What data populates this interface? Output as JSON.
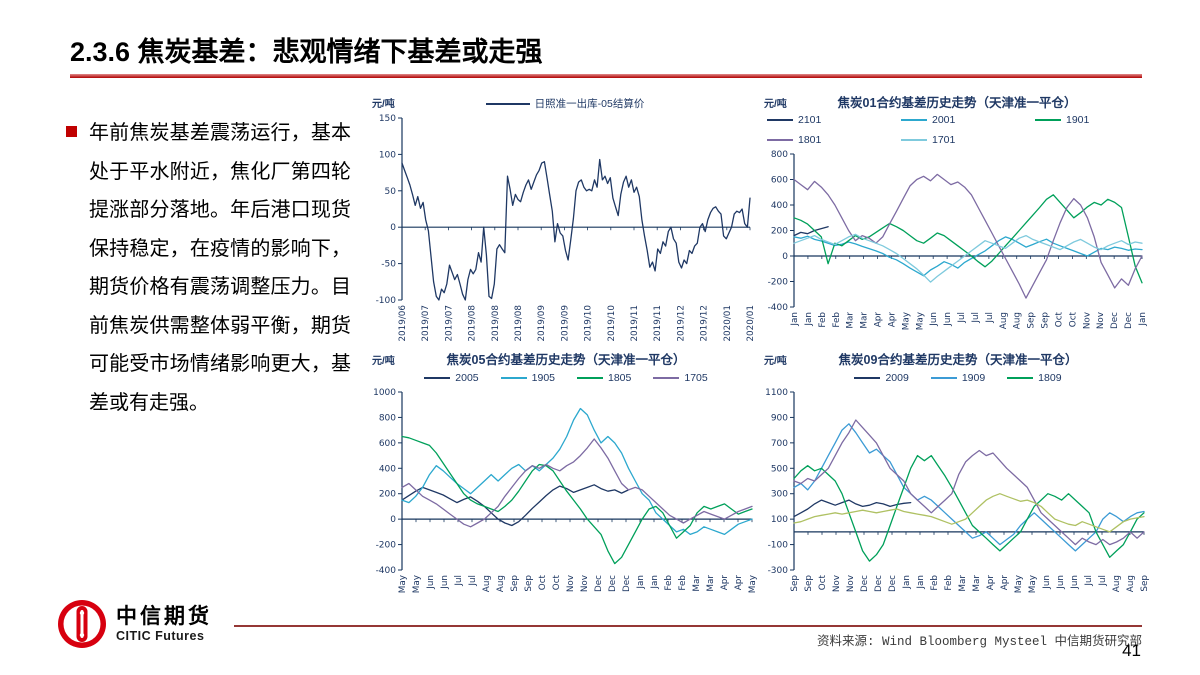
{
  "page": {
    "title": "2.3.6 焦炭基差：悲观情绪下基差或走强",
    "page_number": "41",
    "source": "资料来源: Wind Bloomberg Mysteel 中信期货研究部",
    "logo_cn": "中信期货",
    "logo_en": "CITIC Futures",
    "accent_red": "#C00000",
    "footer_rule_red": "#953735"
  },
  "commentary": {
    "text": "年前焦炭基差震荡运行，基本处于平水附近，焦化厂第四轮提涨部分落地。年后港口现货保持稳定，在疫情的影响下，期货价格有震荡调整压力。目前焦炭供需整体弱平衡，期货可能受市场情绪影响更大，基差或有走强。"
  },
  "chart_data": [
    {
      "type": "line",
      "name": "rizhao-spot-minus-05-settlement",
      "title": "",
      "unit": "元/吨",
      "ylim": [
        -100,
        150
      ],
      "yticks": [
        150,
        100,
        50,
        0,
        -50,
        -100
      ],
      "mb": 46,
      "x_labels": [
        "2019/06",
        "2019/07",
        "2019/07",
        "2019/08",
        "2019/08",
        "2019/08",
        "2019/09",
        "2019/09",
        "2019/10",
        "2019/10",
        "2019/11",
        "2019/11",
        "2019/12",
        "2019/12",
        "2020/01",
        "2020/01"
      ],
      "legend_position": "top-center",
      "grid": false,
      "series": [
        {
          "name": "日照准一出库-05结算价",
          "color": "#1F3864",
          "values": [
            88,
            78,
            68,
            58,
            45,
            30,
            42,
            26,
            34,
            10,
            -5,
            -40,
            -75,
            -95,
            -100,
            -85,
            -90,
            -78,
            -52,
            -62,
            -72,
            -65,
            -78,
            -92,
            -100,
            -72,
            -58,
            -64,
            -58,
            -35,
            -48,
            0,
            -38,
            -95,
            -98,
            -78,
            -30,
            -24,
            -30,
            -35,
            70,
            52,
            30,
            45,
            38,
            35,
            48,
            58,
            65,
            52,
            62,
            72,
            78,
            88,
            90,
            68,
            45,
            22,
            -20,
            5,
            -8,
            -12,
            -32,
            -45,
            -18,
            12,
            50,
            62,
            65,
            55,
            50,
            52,
            50,
            65,
            55,
            93,
            65,
            70,
            60,
            68,
            40,
            28,
            16,
            45,
            62,
            70,
            55,
            65,
            48,
            55,
            42,
            10,
            -12,
            -32,
            -55,
            -48,
            -60,
            -30,
            -36,
            -20,
            -26,
            -6,
            0,
            -16,
            -22,
            -48,
            -56,
            -45,
            -50,
            -32,
            -36,
            -26,
            -22,
            0,
            5,
            -6,
            10,
            20,
            26,
            28,
            22,
            18,
            -12,
            -16,
            -8,
            0,
            18,
            22,
            20,
            25,
            5,
            0,
            40
          ]
        }
      ]
    },
    {
      "type": "line",
      "name": "coke-01-contract-basis-history",
      "title": "焦炭01合约基差历史走势（天津准一平仓）",
      "unit": "元/吨",
      "ylim": [
        -400,
        800
      ],
      "yticks": [
        800,
        600,
        400,
        200,
        0,
        -200,
        -400
      ],
      "x_labels": [
        "Jan",
        "Jan",
        "Feb",
        "Feb",
        "Mar",
        "Mar",
        "Apr",
        "Apr",
        "May",
        "May",
        "Jun",
        "Jun",
        "Jul",
        "Jul",
        "Jul",
        "Aug",
        "Aug",
        "Sep",
        "Sep",
        "Oct",
        "Oct",
        "Nov",
        "Nov",
        "Dec",
        "Dec",
        "Jan"
      ],
      "legend_position": "top-grid",
      "grid": false,
      "series": [
        {
          "name": "2101",
          "color": "#1F3864",
          "start": 0,
          "values": [
            160,
            185,
            175,
            200,
            215,
            230
          ]
        },
        {
          "name": "2001",
          "color": "#2CA8CE",
          "values": [
            150,
            140,
            155,
            130,
            118,
            100,
            82,
            92,
            110,
            95,
            75,
            58,
            40,
            20,
            -10,
            -30,
            -60,
            -95,
            -125,
            -155,
            -110,
            -80,
            -45,
            -65,
            -95,
            -50,
            -20,
            10,
            40,
            80,
            120,
            150,
            130,
            100,
            70,
            90,
            112,
            132,
            100,
            80,
            60,
            40,
            20,
            0,
            30,
            60,
            50,
            70,
            60,
            45,
            55,
            50
          ]
        },
        {
          "name": "1901",
          "color": "#00A05A",
          "values": [
            300,
            280,
            250,
            200,
            150,
            -60,
            100,
            80,
            120,
            160,
            130,
            150,
            185,
            220,
            255,
            230,
            200,
            160,
            120,
            100,
            140,
            180,
            160,
            120,
            80,
            40,
            0,
            -45,
            -85,
            -40,
            20,
            80,
            140,
            200,
            260,
            320,
            380,
            445,
            480,
            420,
            360,
            300,
            340,
            385,
            420,
            400,
            445,
            420,
            380,
            150,
            -80,
            -210
          ]
        },
        {
          "name": "1801",
          "color": "#7D6BA3",
          "values": [
            600,
            560,
            520,
            585,
            540,
            480,
            400,
            300,
            200,
            120,
            160,
            140,
            100,
            150,
            250,
            350,
            450,
            550,
            600,
            625,
            590,
            640,
            600,
            560,
            580,
            540,
            480,
            380,
            280,
            180,
            80,
            -20,
            -120,
            -220,
            -330,
            -230,
            -130,
            -30,
            120,
            260,
            380,
            450,
            400,
            300,
            150,
            -50,
            -150,
            -250,
            -180,
            -230,
            -100,
            0
          ]
        },
        {
          "name": "1701",
          "color": "#7FCADD",
          "values": [
            100,
            120,
            140,
            160,
            130,
            110,
            90,
            120,
            150,
            170,
            140,
            120,
            100,
            80,
            50,
            20,
            -20,
            -60,
            -100,
            -150,
            -205,
            -160,
            -120,
            -80,
            -40,
            0,
            40,
            80,
            120,
            100,
            80,
            60,
            100,
            140,
            160,
            130,
            110,
            90,
            70,
            50,
            80,
            110,
            130,
            100,
            70,
            50,
            80,
            100,
            120,
            90,
            110,
            100
          ]
        }
      ]
    },
    {
      "type": "line",
      "name": "coke-05-contract-basis-history",
      "title": "焦炭05合约基差历史走势（天津准一平仓）",
      "unit": "元/吨",
      "ylim": [
        -400,
        1000
      ],
      "yticks": [
        1000,
        800,
        600,
        400,
        200,
        0,
        -200,
        -400
      ],
      "x_labels": [
        "May",
        "May",
        "Jun",
        "Jun",
        "Jul",
        "Jul",
        "Aug",
        "Aug",
        "Sep",
        "Sep",
        "Oct",
        "Oct",
        "Nov",
        "Nov",
        "Dec",
        "Dec",
        "Dec",
        "Jan",
        "Jan",
        "Feb",
        "Feb",
        "Mar",
        "Mar",
        "Apr",
        "Apr",
        "May"
      ],
      "legend_position": "top-row",
      "grid": false,
      "series": [
        {
          "name": "2005",
          "color": "#1F3864",
          "start": 0,
          "values": [
            150,
            185,
            220,
            250,
            230,
            210,
            190,
            160,
            130,
            155,
            175,
            140,
            100,
            50,
            0,
            -30,
            -50,
            -20,
            30,
            85,
            135,
            185,
            230,
            260,
            240,
            210,
            230,
            250,
            270,
            240,
            220,
            230,
            205,
            230
          ]
        },
        {
          "name": "1905",
          "color": "#2CA8CE",
          "values": [
            150,
            130,
            180,
            250,
            350,
            420,
            380,
            330,
            280,
            240,
            200,
            250,
            300,
            350,
            300,
            350,
            400,
            430,
            380,
            420,
            380,
            430,
            480,
            550,
            650,
            780,
            870,
            820,
            700,
            600,
            650,
            600,
            520,
            400,
            300,
            200,
            150,
            50,
            0,
            -50,
            -100,
            -80,
            -120,
            -100,
            -60,
            -80,
            -100,
            -120,
            -80,
            -40,
            -20,
            0
          ]
        },
        {
          "name": "1805",
          "color": "#00A05A",
          "values": [
            650,
            640,
            620,
            600,
            580,
            520,
            440,
            360,
            280,
            200,
            150,
            120,
            100,
            80,
            60,
            100,
            150,
            220,
            300,
            380,
            430,
            420,
            380,
            300,
            220,
            150,
            80,
            0,
            -60,
            -120,
            -250,
            -350,
            -300,
            -200,
            -100,
            0,
            80,
            100,
            50,
            -50,
            -150,
            -100,
            -50,
            50,
            100,
            80,
            100,
            120,
            80,
            40,
            60,
            80
          ]
        },
        {
          "name": "1705",
          "color": "#7D6BA3",
          "values": [
            250,
            280,
            230,
            180,
            150,
            120,
            80,
            40,
            0,
            -40,
            -60,
            -30,
            0,
            50,
            100,
            180,
            250,
            320,
            380,
            420,
            400,
            430,
            400,
            380,
            420,
            450,
            500,
            560,
            630,
            560,
            480,
            380,
            280,
            230,
            250,
            230,
            180,
            130,
            80,
            30,
            0,
            -30,
            0,
            30,
            60,
            40,
            20,
            0,
            30,
            60,
            80,
            100
          ]
        }
      ]
    },
    {
      "type": "line",
      "name": "coke-09-contract-basis-history",
      "title": "焦炭09合约基差历史走势（天津准一平仓）",
      "unit": "元/吨",
      "ylim": [
        -300,
        1100
      ],
      "yticks": [
        1100,
        900,
        700,
        500,
        300,
        100,
        -100,
        -300
      ],
      "x_labels": [
        "Sep",
        "Sep",
        "Oct",
        "Nov",
        "Nov",
        "Dec",
        "Dec",
        "Dec",
        "Jan",
        "Jan",
        "Feb",
        "Feb",
        "Mar",
        "Mar",
        "Apr",
        "Apr",
        "May",
        "May",
        "Jun",
        "Jun",
        "Jun",
        "Jul",
        "Jul",
        "Aug",
        "Aug",
        "Sep"
      ],
      "legend_position": "top-row",
      "grid": false,
      "series": [
        {
          "name": "2009",
          "color": "#1F3864",
          "start": 0,
          "values": [
            120,
            150,
            180,
            220,
            250,
            230,
            210,
            230,
            250,
            220,
            200,
            210,
            230,
            220,
            200,
            215,
            225,
            230
          ]
        },
        {
          "name": "1909",
          "color": "#3C9BD5",
          "values": [
            350,
            380,
            330,
            400,
            500,
            600,
            700,
            800,
            850,
            780,
            700,
            620,
            650,
            600,
            550,
            450,
            350,
            300,
            250,
            280,
            250,
            200,
            150,
            100,
            50,
            0,
            -50,
            -30,
            0,
            -50,
            -100,
            -60,
            -20,
            50,
            100,
            150,
            100,
            50,
            0,
            -50,
            -100,
            -150,
            -100,
            -50,
            0,
            100,
            150,
            120,
            80,
            120,
            150,
            160
          ]
        },
        {
          "name": "1809",
          "color": "#00A05A",
          "values": [
            420,
            480,
            520,
            480,
            500,
            450,
            400,
            300,
            150,
            0,
            -150,
            -230,
            -180,
            -100,
            50,
            200,
            350,
            500,
            600,
            560,
            600,
            520,
            440,
            350,
            250,
            150,
            50,
            0,
            -50,
            -100,
            -150,
            -100,
            -50,
            0,
            100,
            200,
            250,
            300,
            280,
            250,
            300,
            250,
            200,
            150,
            0,
            -100,
            -200,
            -150,
            -100,
            0,
            100,
            150
          ]
        },
        {
          "name": "",
          "legend": false,
          "color": "#7D6BA3",
          "values": [
            400,
            380,
            420,
            400,
            450,
            500,
            600,
            700,
            780,
            880,
            820,
            760,
            700,
            600,
            500,
            450,
            400,
            300,
            250,
            200,
            150,
            200,
            250,
            300,
            450,
            550,
            600,
            640,
            600,
            620,
            560,
            500,
            450,
            400,
            350,
            250,
            150,
            100,
            50,
            0,
            -50,
            -100,
            -50,
            -80,
            -100,
            -60,
            -100,
            -80,
            -50,
            0,
            -50,
            0
          ]
        },
        {
          "name": "",
          "legend": false,
          "color": "#AFC163",
          "values": [
            70,
            80,
            100,
            120,
            130,
            140,
            150,
            140,
            150,
            160,
            170,
            160,
            150,
            160,
            170,
            180,
            160,
            150,
            140,
            130,
            120,
            100,
            80,
            60,
            80,
            100,
            150,
            200,
            250,
            280,
            300,
            280,
            260,
            240,
            250,
            230,
            200,
            150,
            100,
            80,
            60,
            50,
            80,
            60,
            40,
            20,
            0,
            40,
            80,
            100,
            110,
            120
          ]
        }
      ]
    }
  ]
}
